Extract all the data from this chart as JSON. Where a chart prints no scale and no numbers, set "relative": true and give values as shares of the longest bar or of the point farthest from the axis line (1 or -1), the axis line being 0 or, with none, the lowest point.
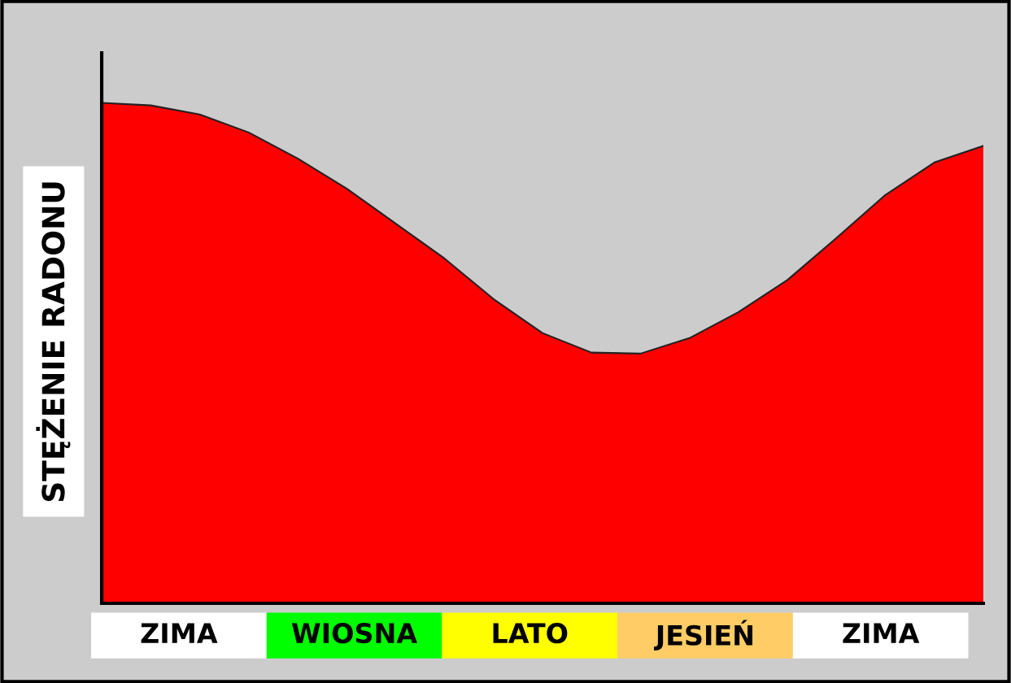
{
  "chart_data": {
    "type": "area",
    "relative": true,
    "ylabel": "STĘŻENIE RADONU",
    "categories": [
      null,
      null,
      null,
      null,
      null,
      null,
      null,
      null,
      null,
      null,
      null,
      null,
      null,
      null,
      null,
      null,
      null,
      null,
      null
    ],
    "series": [
      {
        "color": "#ff0000",
        "values": [
          1,
          0.995,
          0.977,
          0.941,
          0.889,
          0.829,
          0.759,
          0.689,
          0.608,
          0.54,
          0.501,
          0.499,
          0.53,
          0.582,
          0.646,
          0.73,
          0.816,
          0.881,
          0.914
        ]
      }
    ],
    "annotations": [
      "ZIMA",
      "WIOSNA",
      "LATO",
      "JESIEŃ",
      "ZIMA"
    ],
    "grid": false
  }
}
